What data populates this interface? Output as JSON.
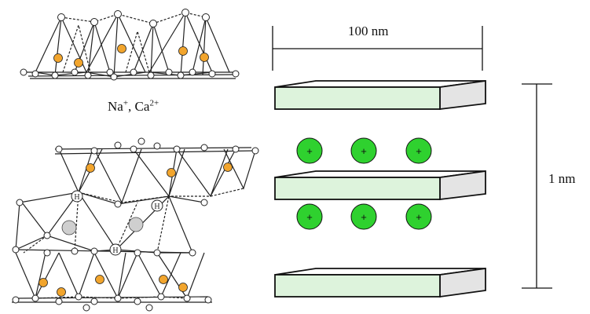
{
  "labels": {
    "width": "100 nm",
    "height": "1 nm",
    "ion_na": "Na",
    "ion_na_charge": "+",
    "ion_separator": ", ",
    "ion_ca": "Ca",
    "ion_ca_charge": "2+",
    "hydroxyl": "H",
    "cation_sign": "+"
  },
  "colors": {
    "platelet_face": "#ddf3dc",
    "platelet_side": "#e4e4e4",
    "cation": "#2fd12f",
    "octahedral_atom": "#cfcfcf",
    "tetrahedral_atom": "#f2a52d",
    "stroke": "#111111"
  },
  "structure": {
    "platelet_count": 3,
    "cation_rows": 2,
    "cations_per_row": 3
  }
}
